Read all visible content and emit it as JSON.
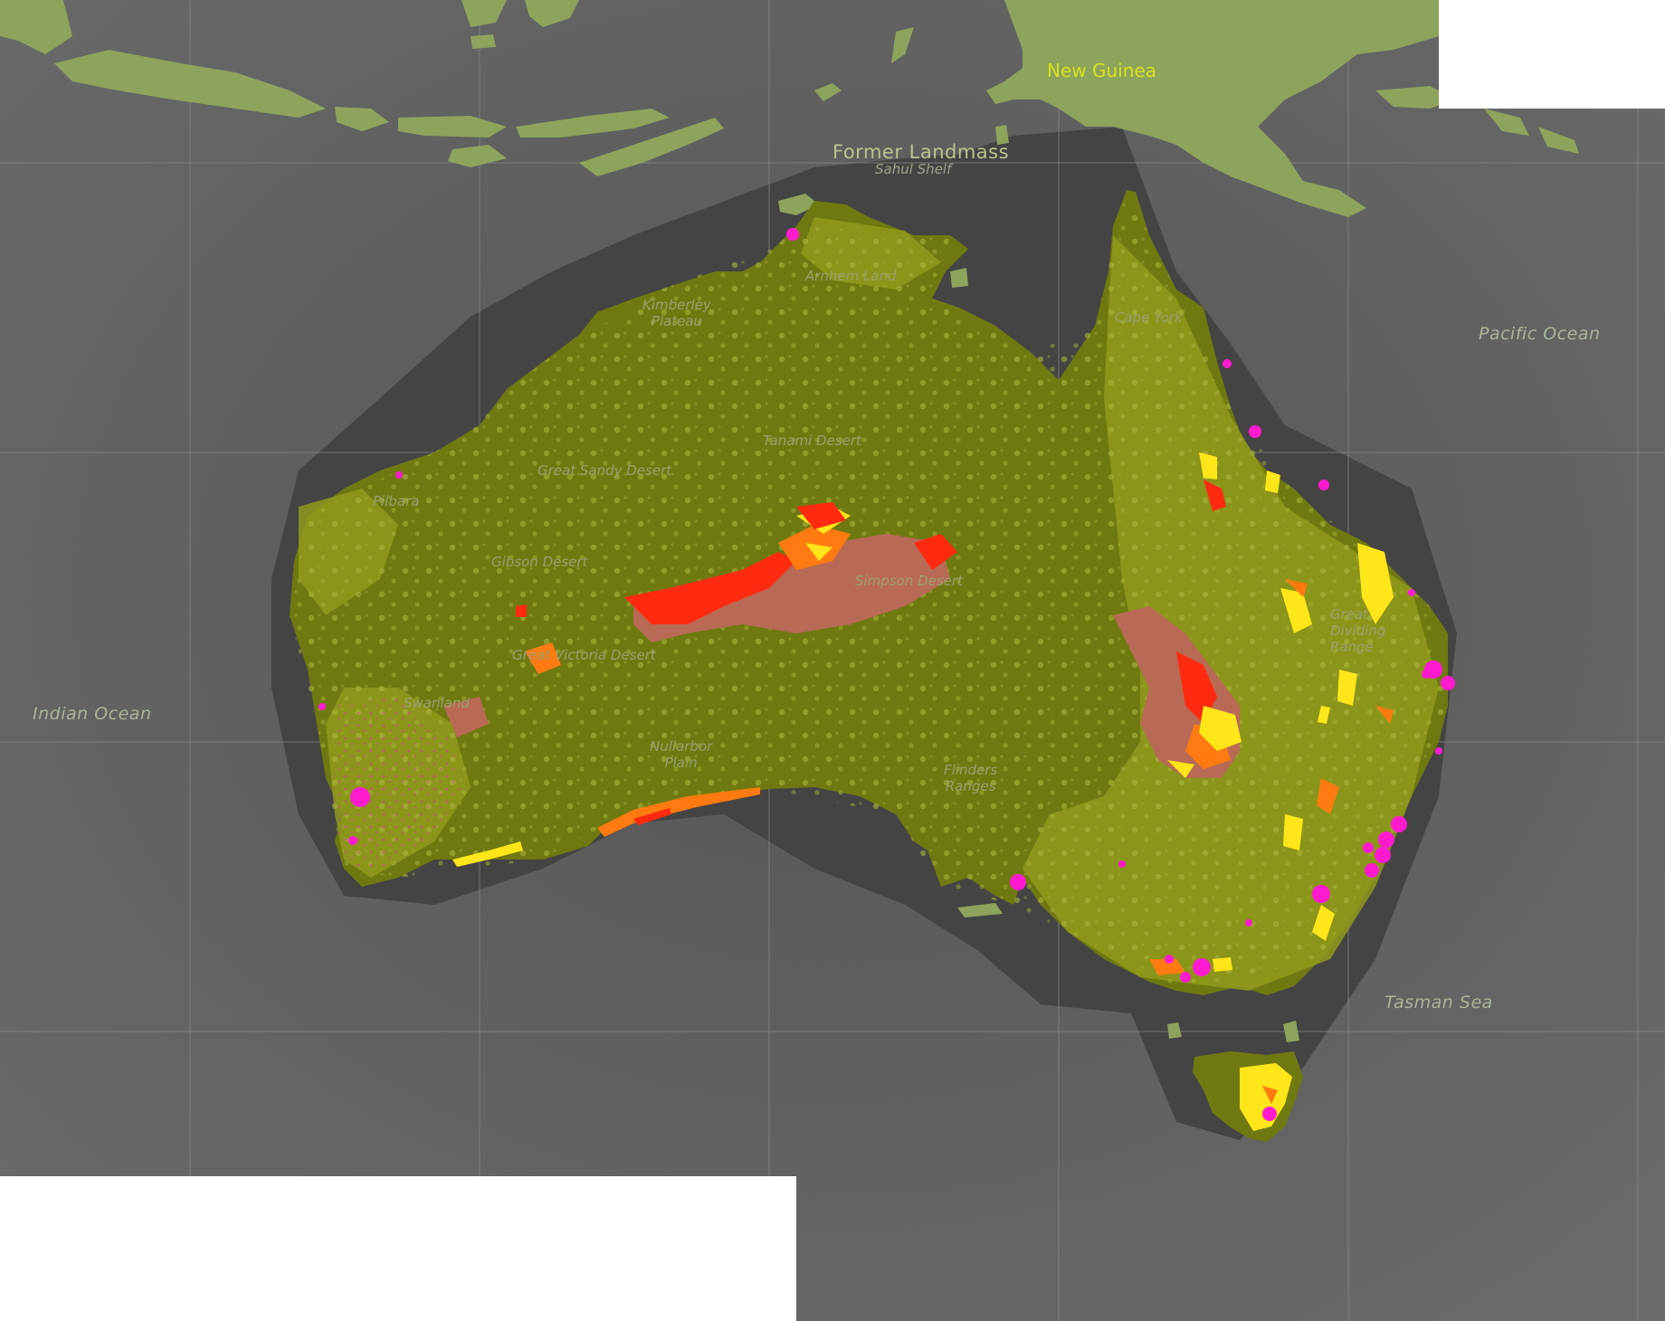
{
  "map": {
    "colors": {
      "ocean": "#5c5c5c",
      "shelf": "#464646",
      "graticule": "#8a8a8a",
      "neighbour_land": "#8ea35c",
      "australia_land": "#6e7a10",
      "vegetation_patch": "#8f9a1c",
      "dot_light": "#a8b43a",
      "fire_red": "#ff2a10",
      "fire_orange": "#ff7a10",
      "fire_yellow": "#ffe61a",
      "fire_brown": "#b86a55",
      "settlement": "#ff1ad0"
    },
    "labels": {
      "new_guinea": "New Guinea",
      "former_landmass": "Former Landmass",
      "sahul_shelf": "Sahul Shelf",
      "pacific_ocean": "Pacific Ocean",
      "indian_ocean": "Indian Ocean",
      "tasman_sea": "Tasman Sea",
      "arnhem_land": "Arnhem Land",
      "kimberley_plateau": "Kimberley\nPlateau",
      "cape_york": "Cape York",
      "tanami_desert": "Tanami Desert",
      "great_sandy_desert": "Great Sandy Desert",
      "pilbara": "Pilbara",
      "gibson_desert": "Gibson Desert",
      "simpson_desert": "Simpson Desert",
      "great_victoria_desert": "Great Victoria Desert",
      "swanland": "Swanland",
      "nullarbor_plain": "Nullarbor\nPlain",
      "flinders_ranges": "Flinders\nRanges",
      "great_dividing_range": "Great\nDividing\nRange"
    }
  }
}
